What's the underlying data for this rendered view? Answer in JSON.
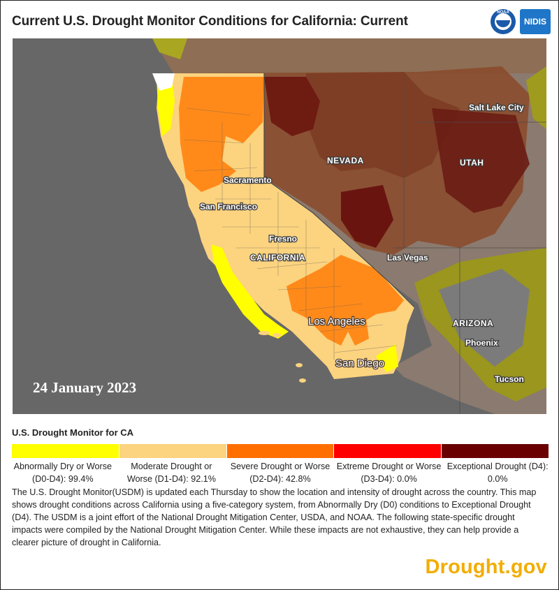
{
  "header": {
    "title": "Current U.S. Drought Monitor Conditions for California: Current",
    "logo_noaa": "NOAA",
    "logo_nidis": "NIDIS"
  },
  "map": {
    "date_label": "24 January 2023",
    "labels": {
      "nevada": "NEVADA",
      "utah": "UTAH",
      "arizona": "ARIZONA",
      "california": "CALIFORNIA",
      "salt_lake_city": "Salt Lake City",
      "sacramento": "Sacramento",
      "san_francisco": "San Francisco",
      "fresno": "Fresno",
      "las_vegas": "Las Vegas",
      "los_angeles": "Los Angeles",
      "san_diego": "San Diego",
      "phoenix": "Phoenix",
      "tucson": "Tucson"
    },
    "colors": {
      "ocean": "#666666",
      "land_outside": "#8a7a70",
      "d0": "#ffff00",
      "d1": "#fcd37f",
      "d2": "#ffaa00",
      "d3": "#e60000",
      "d4": "#730000"
    }
  },
  "legend": {
    "title": "U.S. Drought Monitor for CA",
    "categories": [
      {
        "label": "Abnormally Dry or Worse (D0-D4): 99.4%",
        "color": "#ffff00",
        "percent": 99.4
      },
      {
        "label": "Moderate Drought or Worse (D1-D4): 92.1%",
        "color": "#fcd37f",
        "percent": 92.1
      },
      {
        "label": "Severe Drought or Worse (D2-D4): 42.8%",
        "color": "#ff6f00",
        "percent": 42.8
      },
      {
        "label": "Extreme Drought or Worse (D3-D4): 0.0%",
        "color": "#ff0000",
        "percent": 0.0
      },
      {
        "label": "Exceptional Drought (D4): 0.0%",
        "color": "#6b0000",
        "percent": 0.0
      }
    ]
  },
  "description": "The U.S. Drought Monitor(USDM) is updated each Thursday to show the location and intensity of drought across the country. This map shows drought conditions across California using a five-category system, from Abnormally Dry (D0) conditions to Exceptional Drought (D4). The USDM is a joint effort of the National Drought Mitigation Center, USDA, and NOAA. The following state-specific drought impacts were compiled by the National Drought Mitigation Center. While these impacts are not exhaustive, they can help provide a clearer picture of drought in California.",
  "footer": {
    "brand": "Drought.gov"
  }
}
